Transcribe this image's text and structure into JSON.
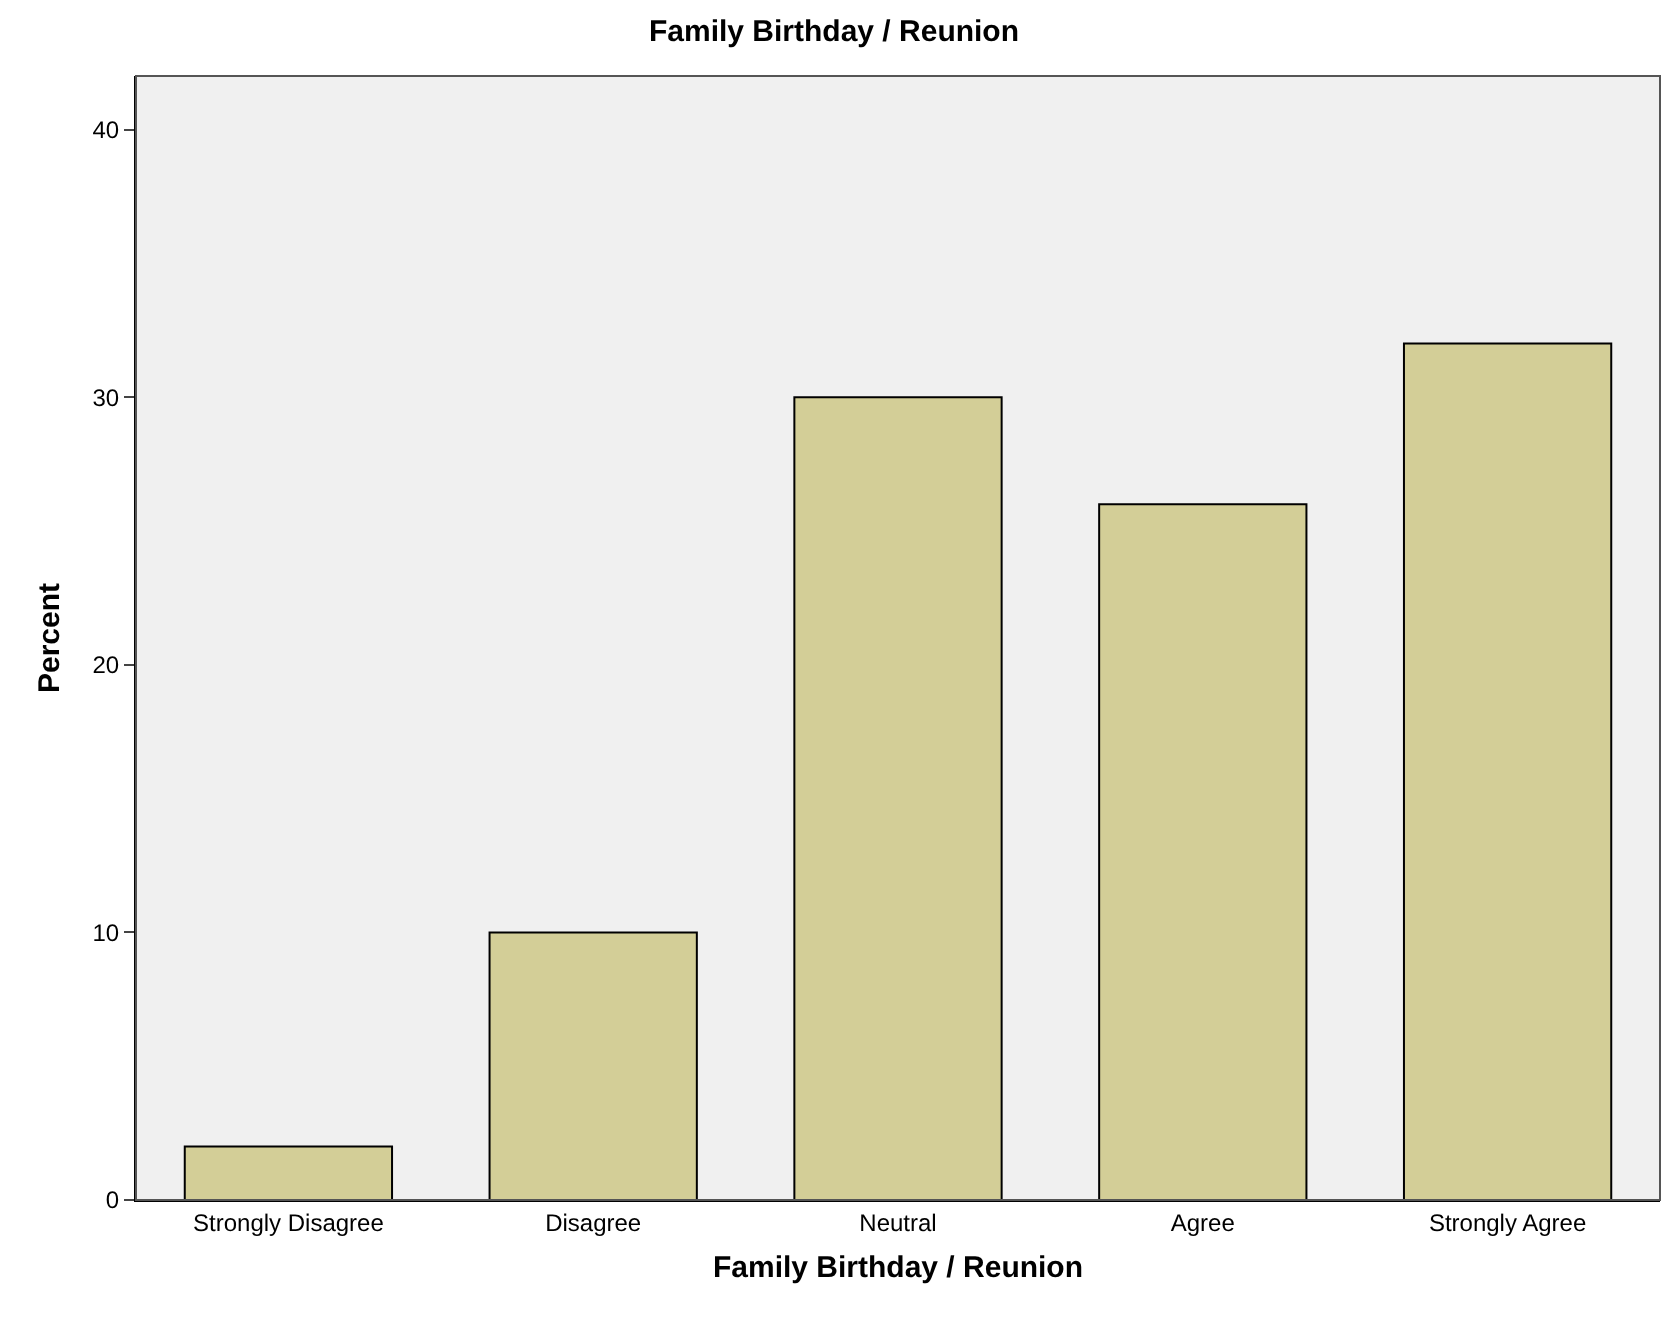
{
  "chart_data": {
    "type": "bar",
    "title": "Family Birthday / Reunion",
    "xlabel": "Family Birthday / Reunion",
    "ylabel": "Percent",
    "categories": [
      "Strongly Disagree",
      "Disagree",
      "Neutral",
      "Agree",
      "Strongly Agree"
    ],
    "values": [
      2,
      10,
      30,
      26,
      32
    ],
    "color": "#d3ce97",
    "ylim": [
      0,
      42
    ],
    "yticks": [
      0,
      10,
      20,
      30,
      40
    ],
    "grid": false,
    "legend": false
  }
}
